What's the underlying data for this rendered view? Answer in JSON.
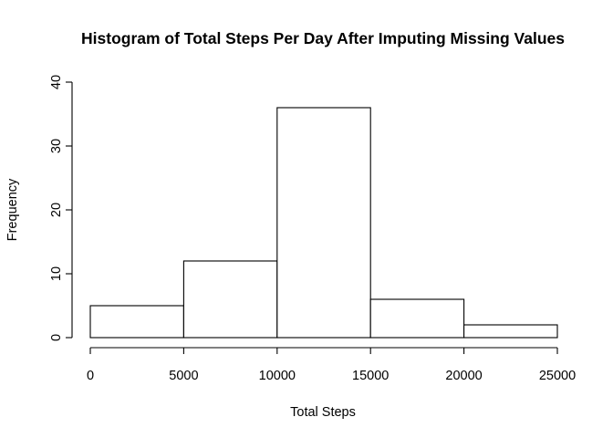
{
  "chart_data": {
    "type": "bar",
    "histogram": true,
    "title": "Histogram of Total Steps Per Day After Imputing Missing Values",
    "xlabel": "Total Steps",
    "ylabel": "Frequency",
    "bin_edges": [
      0,
      5000,
      10000,
      15000,
      20000,
      25000
    ],
    "categories": [
      "0-5000",
      "5000-10000",
      "10000-15000",
      "15000-20000",
      "20000-25000"
    ],
    "values": [
      5,
      12,
      36,
      6,
      2
    ],
    "xlim": [
      0,
      25000
    ],
    "ylim": [
      0,
      40
    ],
    "x_ticks": [
      0,
      5000,
      10000,
      15000,
      20000,
      25000
    ],
    "y_ticks": [
      0,
      10,
      20,
      30,
      40
    ],
    "grid": false,
    "bar_fill": "#ffffff",
    "bar_stroke": "#000000"
  }
}
